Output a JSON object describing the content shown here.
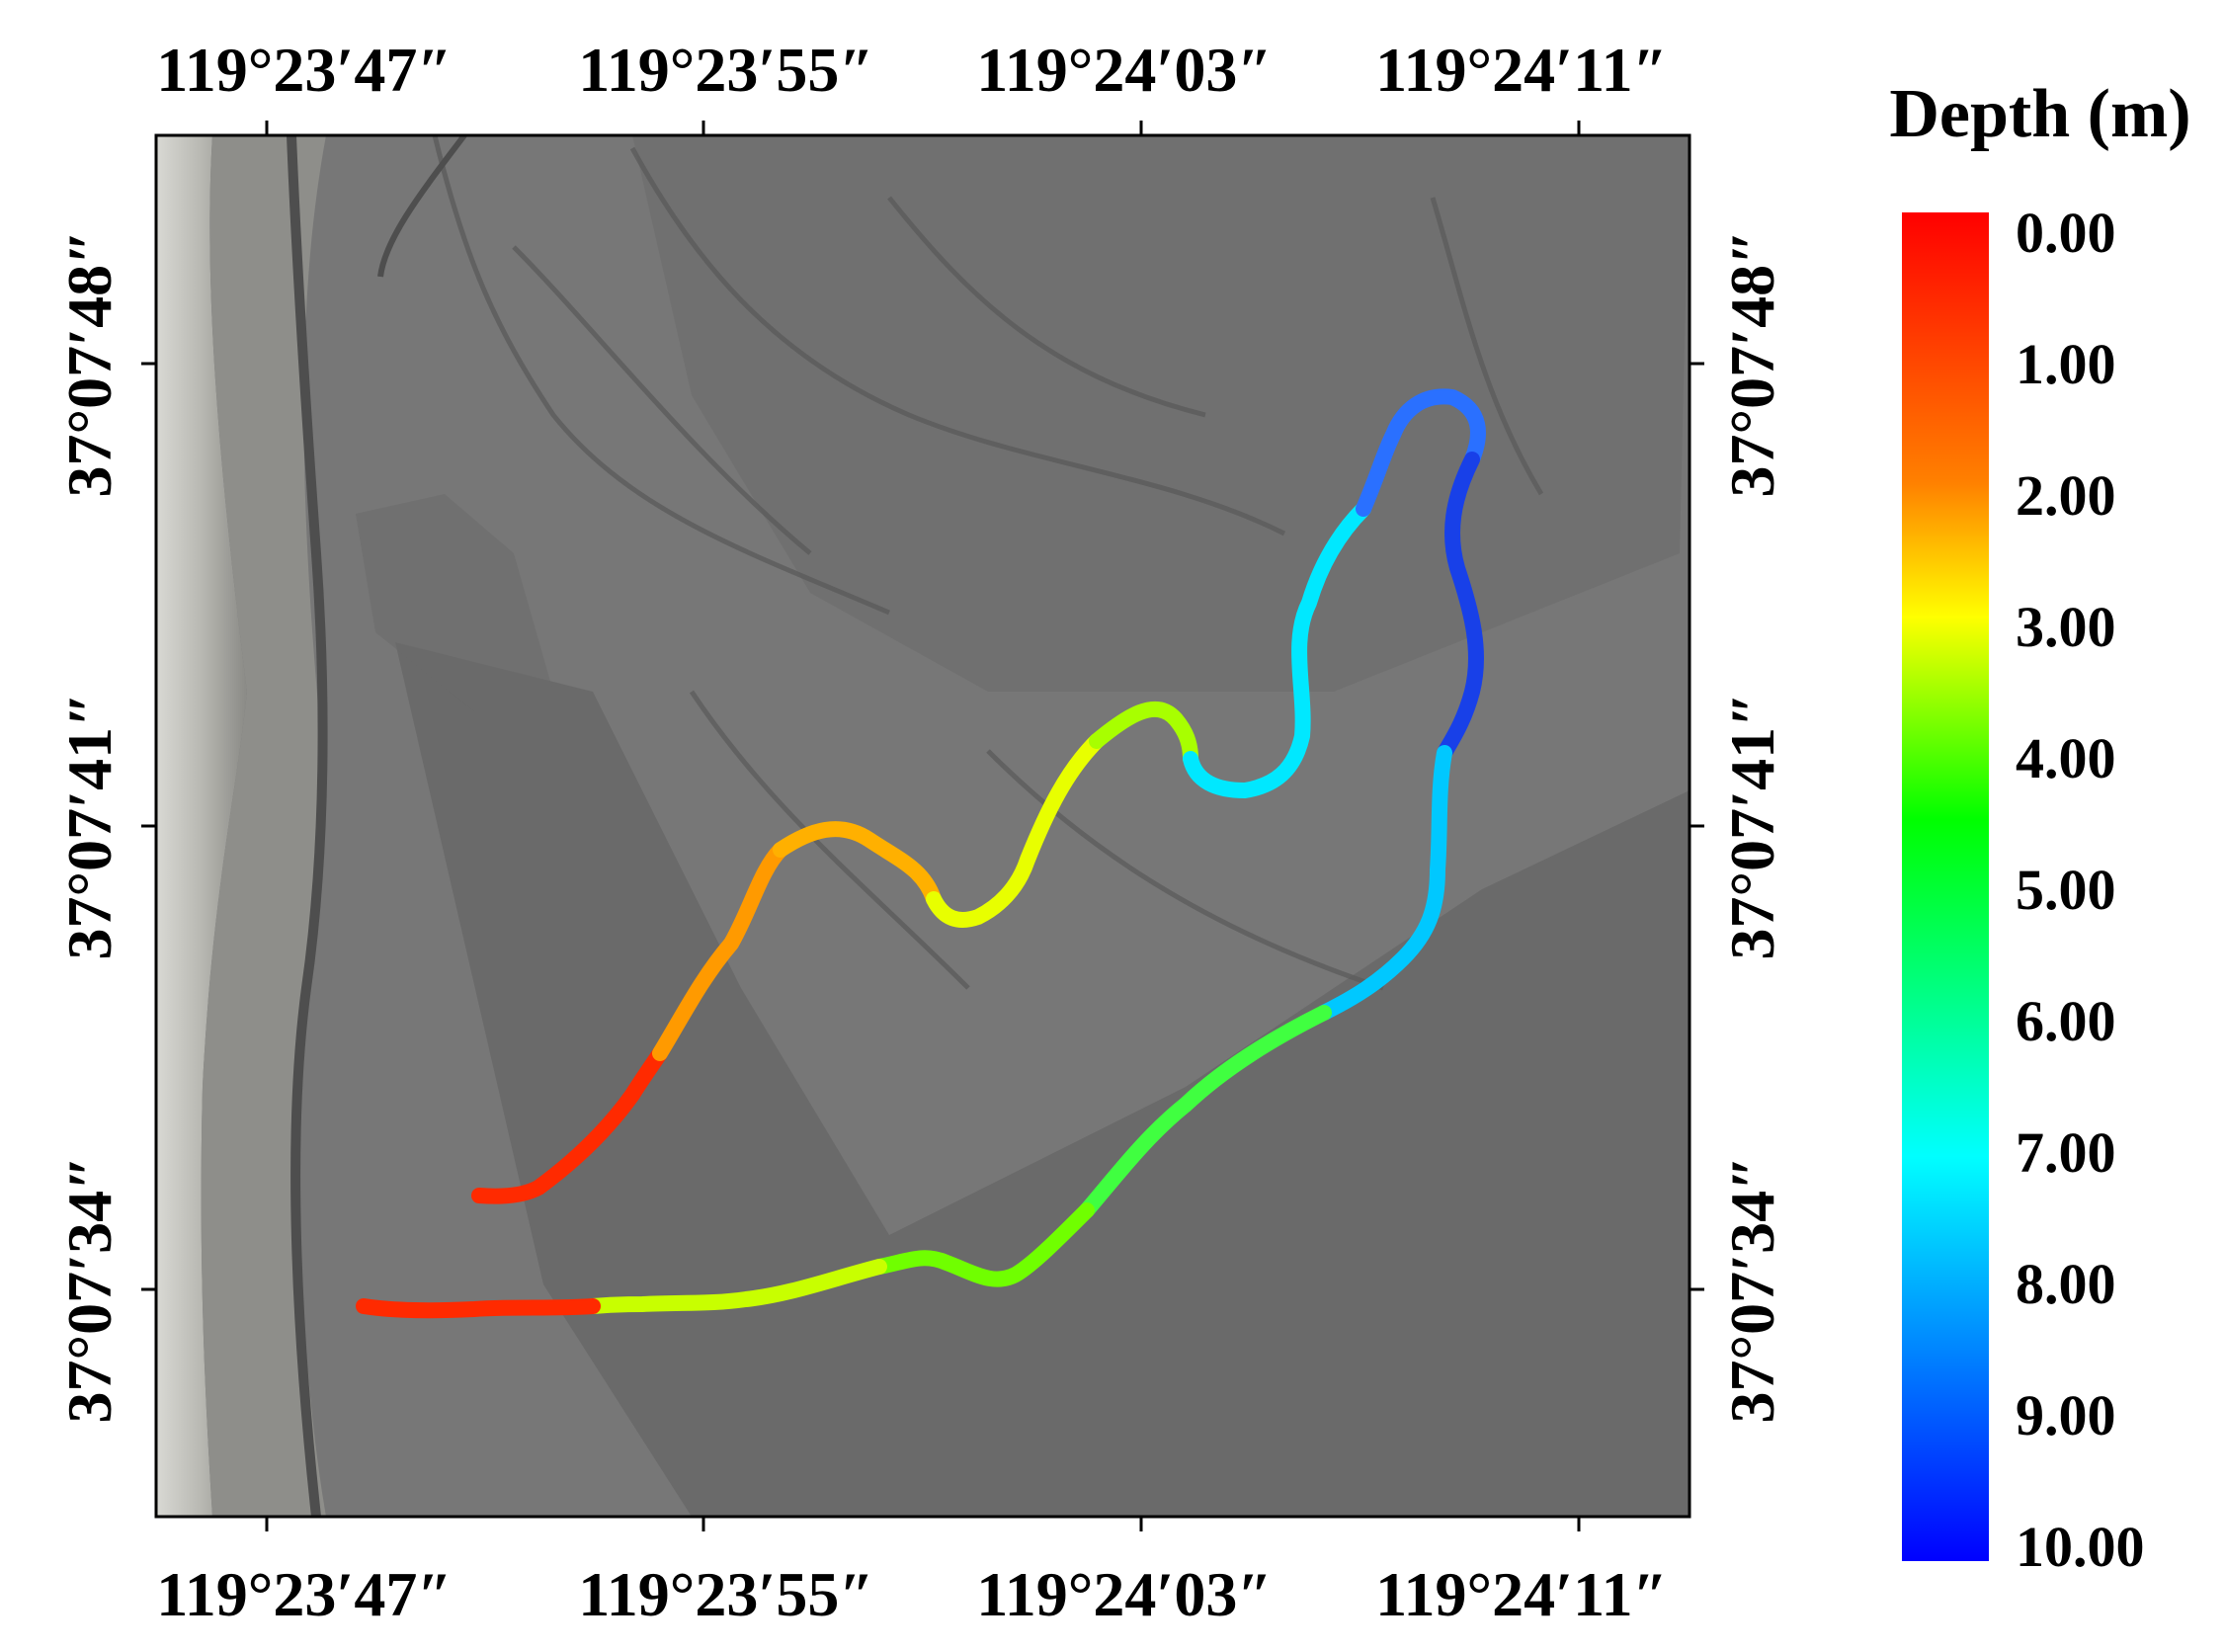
{
  "map": {
    "longitude_labels": [
      "119°23′47″",
      "119°23′55″",
      "119°24′03″",
      "119°24′11″"
    ],
    "latitude_labels": [
      "37°07′48″",
      "37°07′41″",
      "37°07′34″"
    ],
    "colors": {
      "tidal_flat": "#747474",
      "shoreline_sand": "#c9c9c4",
      "tidal_channel": "#5a5a5a",
      "frame": "#000000"
    }
  },
  "track": {
    "description_units": "depth in meters along survey path (shallow=red, deep=blue)",
    "color_scale_min": 0,
    "color_scale_max": 10
  },
  "legend": {
    "title": "Depth (m)",
    "ticks": [
      "0.00",
      "1.00",
      "2.00",
      "3.00",
      "4.00",
      "5.00",
      "6.00",
      "7.00",
      "8.00",
      "9.00",
      "10.00"
    ],
    "colors": [
      "#ff0000",
      "#ff8000",
      "#ffff00",
      "#00ff00",
      "#00ffff",
      "#0000ff"
    ]
  }
}
